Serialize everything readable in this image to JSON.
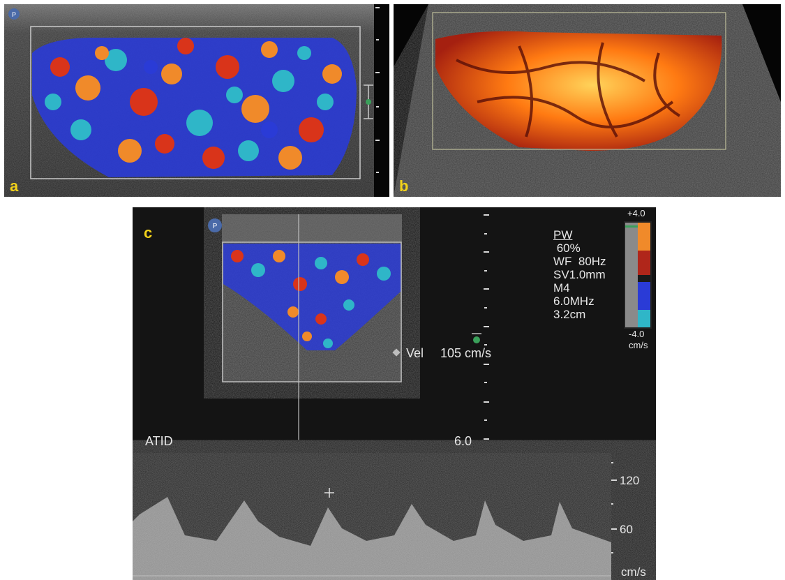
{
  "panels": {
    "a": {
      "label": "a"
    },
    "b": {
      "label": "b"
    },
    "c": {
      "label": "c",
      "vel_label": "Vel",
      "vel_value": "105 cm/s",
      "site_label": "ATID",
      "depth_value": "6.0",
      "params": [
        "PW",
        " 60%",
        "WF  80Hz",
        "SV1.0mm",
        "M4",
        "6.0MHz",
        "3.2cm"
      ],
      "colorbar": {
        "top": "+4.0",
        "bottom": "-4.0",
        "unit": "cm/s"
      },
      "spectral_scale": {
        "ticks": [
          "120",
          "60"
        ],
        "unit": "cm/s"
      }
    }
  },
  "colors": {
    "label": "#f3d21a",
    "background": "#0b0b0b",
    "doppler_red": "#d9341a",
    "doppler_blue": "#2a3bd6",
    "doppler_cyan": "#2fb6c8",
    "doppler_orange": "#f08a2a",
    "power_orange": "#ff7a12"
  },
  "icons": [
    "probe-logo-icon",
    "focus-marker-icon",
    "sample-gate-icon"
  ]
}
